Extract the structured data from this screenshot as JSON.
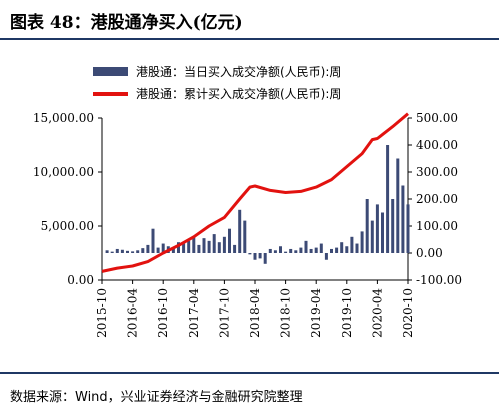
{
  "figure_title": "图表 48：港股通净买入(亿元)",
  "source": "数据来源：Wind，兴业证券经济与金融研究院整理",
  "colors": {
    "bars": "#3c4a75",
    "line": "#e2120f",
    "frame": "#1f3864"
  },
  "chart_data": {
    "type": "bar+line",
    "title": "",
    "legend_position": "top-right",
    "grid": false,
    "x_ticks": [
      "2015-10",
      "2016-04",
      "2016-10",
      "2017-04",
      "2017-10",
      "2018-04",
      "2018-10",
      "2019-04",
      "2019-10",
      "2020-04",
      "2020-10"
    ],
    "left_axis": {
      "ylim": [
        0,
        15000
      ],
      "ticks": [
        "0.00",
        "5,000.00",
        "10,000.00",
        "15,000.00"
      ],
      "tick_values": [
        0,
        5000,
        10000,
        15000
      ]
    },
    "right_axis": {
      "ylim": [
        -100,
        500
      ],
      "ticks": [
        "-100.00",
        "0.00",
        "100.00",
        "200.00",
        "300.00",
        "400.00",
        "500.00"
      ],
      "tick_values": [
        -100,
        0,
        100,
        200,
        300,
        400,
        500
      ]
    },
    "series": [
      {
        "name": "港股通：当日买入成交净额(人民币):周",
        "type": "bar",
        "axis": "right",
        "x": [
          "2015-11",
          "2015-12",
          "2016-01",
          "2016-02",
          "2016-03",
          "2016-04",
          "2016-05",
          "2016-06",
          "2016-07",
          "2016-08",
          "2016-09",
          "2016-10",
          "2016-11",
          "2016-12",
          "2017-01",
          "2017-02",
          "2017-03",
          "2017-04",
          "2017-05",
          "2017-06",
          "2017-07",
          "2017-08",
          "2017-09",
          "2017-10",
          "2017-11",
          "2017-12",
          "2018-01",
          "2018-02",
          "2018-03",
          "2018-04",
          "2018-05",
          "2018-06",
          "2018-07",
          "2018-08",
          "2018-09",
          "2018-10",
          "2018-11",
          "2018-12",
          "2019-01",
          "2019-02",
          "2019-03",
          "2019-04",
          "2019-05",
          "2019-06",
          "2019-07",
          "2019-08",
          "2019-09",
          "2019-10",
          "2019-11",
          "2019-12",
          "2020-01",
          "2020-02",
          "2020-03",
          "2020-04",
          "2020-05",
          "2020-06",
          "2020-07",
          "2020-08",
          "2020-09",
          "2020-10"
        ],
        "values": [
          10,
          5,
          15,
          12,
          8,
          6,
          10,
          18,
          30,
          90,
          20,
          35,
          25,
          18,
          40,
          35,
          45,
          60,
          30,
          55,
          45,
          70,
          40,
          60,
          90,
          30,
          160,
          120,
          -5,
          -25,
          -20,
          -40,
          15,
          10,
          25,
          5,
          15,
          10,
          20,
          45,
          15,
          20,
          35,
          -25,
          15,
          20,
          40,
          25,
          60,
          35,
          80,
          200,
          120,
          180,
          150,
          400,
          200,
          350,
          250,
          180
        ]
      },
      {
        "name": "港股通：累计买入成交净额(人民币):周",
        "type": "line",
        "axis": "left",
        "x": [
          "2015-10",
          "2016-01",
          "2016-04",
          "2016-07",
          "2016-10",
          "2017-01",
          "2017-04",
          "2017-07",
          "2017-10",
          "2018-01",
          "2018-03",
          "2018-04",
          "2018-07",
          "2018-10",
          "2019-01",
          "2019-04",
          "2019-07",
          "2019-10",
          "2020-01",
          "2020-03",
          "2020-04",
          "2020-07",
          "2020-10"
        ],
        "values": [
          800,
          1100,
          1300,
          1700,
          2500,
          3200,
          4000,
          5000,
          5800,
          7500,
          8600,
          8700,
          8300,
          8100,
          8200,
          8600,
          9300,
          10500,
          11700,
          13000,
          13100,
          14200,
          15400
        ]
      }
    ]
  }
}
